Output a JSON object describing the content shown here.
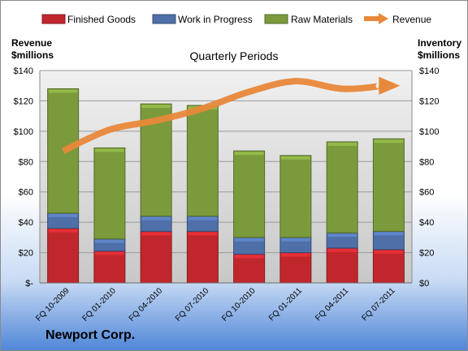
{
  "company": "Newport Corp.",
  "chart_data": {
    "type": "bar",
    "stacked": true,
    "title": "Quarterly Periods",
    "ylabel_left": "Revenue\n$millions",
    "ylabel_right": "Inventory\n$millions",
    "categories": [
      "FQ 10-2009",
      "FQ 01-2010",
      "FQ 04-2010",
      "FQ 07-2010",
      "FQ 10-2010",
      "FQ 01-2011",
      "FQ 04-2011",
      "FQ 07-2011"
    ],
    "ylim": [
      0,
      140
    ],
    "y_ticks_left": [
      "$-",
      "$20",
      "$40",
      "$60",
      "$80",
      "$100",
      "$120",
      "$140"
    ],
    "y_ticks_right": [
      "$0",
      "$20",
      "$40",
      "$60",
      "$80",
      "$100",
      "$120",
      "$140"
    ],
    "series": [
      {
        "name": "Finished Goods",
        "kind": "bar",
        "color": "#c0272d",
        "values": [
          36,
          21,
          34,
          34,
          19,
          20,
          23,
          22
        ]
      },
      {
        "name": "Work in Progress",
        "kind": "bar",
        "color": "#4f6fa8",
        "values": [
          10,
          8,
          10,
          10,
          11,
          10,
          10,
          12
        ]
      },
      {
        "name": "Raw Materials",
        "kind": "bar",
        "color": "#7b9a3c",
        "values": [
          82,
          60,
          74,
          73,
          57,
          54,
          60,
          61
        ]
      },
      {
        "name": "Revenue",
        "kind": "line",
        "color": "#e8883a",
        "values": [
          87,
          101,
          107,
          115,
          126,
          133,
          128,
          130
        ]
      }
    ],
    "legend_position": "top",
    "grid": true
  }
}
